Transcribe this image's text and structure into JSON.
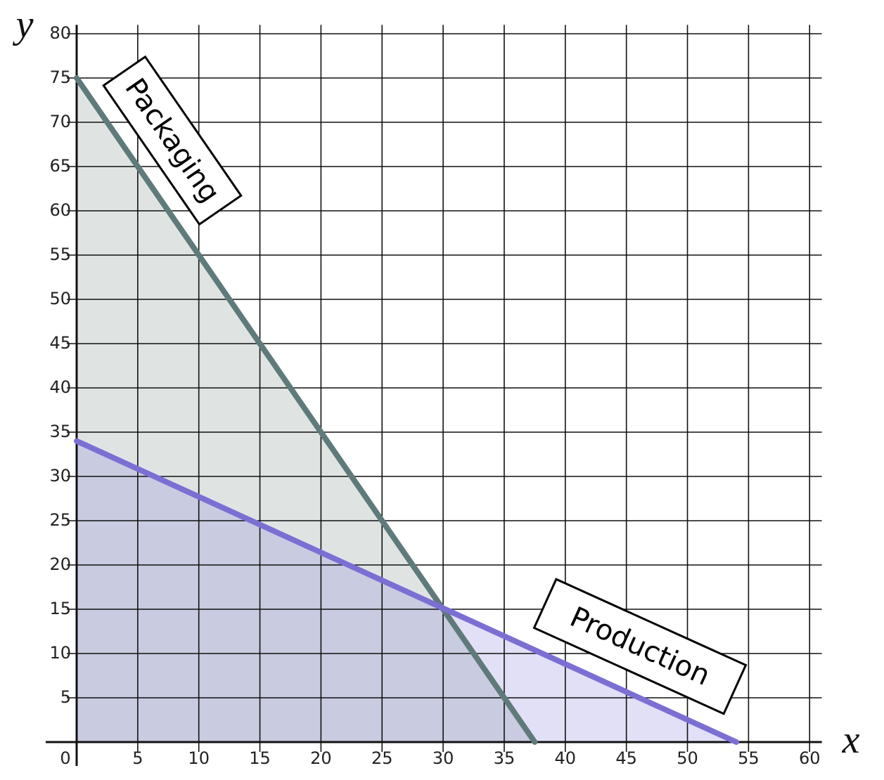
{
  "chart_data": {
    "type": "line",
    "x_label": "x",
    "y_label": "y",
    "xlim": [
      0,
      61
    ],
    "ylim": [
      0,
      81
    ],
    "xticks": [
      0,
      5,
      10,
      15,
      20,
      25,
      30,
      35,
      40,
      45,
      50,
      55,
      60
    ],
    "yticks": [
      5,
      10,
      15,
      20,
      25,
      30,
      35,
      40,
      45,
      50,
      55,
      60,
      65,
      70,
      75,
      80
    ],
    "grid": true,
    "series": [
      {
        "name": "Packaging",
        "color": "#5f7a7a",
        "fill": "#dfe4e3",
        "x": [
          0,
          37.5
        ],
        "values": [
          75,
          0
        ]
      },
      {
        "name": "Production",
        "color": "#7b6fd4",
        "fill": "#7c70d6",
        "x": [
          0,
          54
        ],
        "values": [
          34,
          0
        ]
      }
    ]
  }
}
